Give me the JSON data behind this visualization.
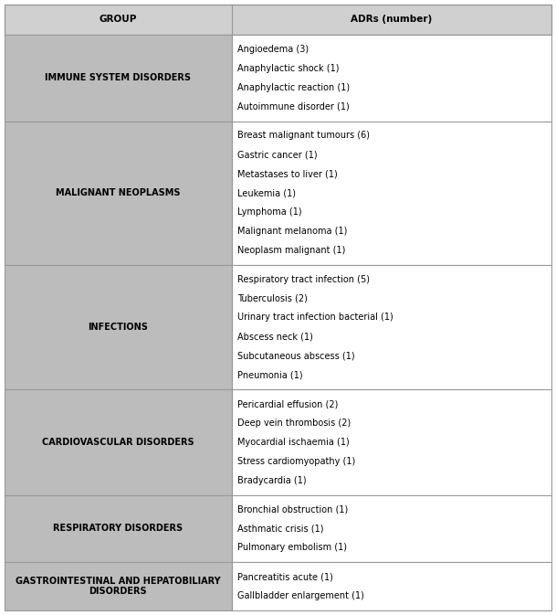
{
  "title_col1": "GROUP",
  "title_col2": "ADRs (number)",
  "header_bg": "#d0d0d0",
  "row_bg_left": "#bcbcbc",
  "row_bg_right": "#ffffff",
  "border_color": "#999999",
  "col_split": 0.415,
  "rows": [
    {
      "group": "IMMUNE SYSTEM DISORDERS",
      "adrs": [
        "Angioedema (3)",
        "Anaphylactic shock (1)",
        "Anaphylactic reaction (1)",
        "Autoimmune disorder (1)"
      ]
    },
    {
      "group": "MALIGNANT NEOPLASMS",
      "adrs": [
        "Breast malignant tumours (6)",
        "Gastric cancer (1)",
        "Metastases to liver (1)",
        "Leukemia (1)",
        "Lymphoma (1)",
        "Malignant melanoma (1)",
        "Neoplasm malignant (1)"
      ]
    },
    {
      "group": "INFECTIONS",
      "adrs": [
        "Respiratory tract infection (5)",
        "Tuberculosis (2)",
        "Urinary tract infection bacterial (1)",
        "Abscess neck (1)",
        "Subcutaneous abscess (1)",
        "Pneumonia (1)"
      ]
    },
    {
      "group": "CARDIOVASCULAR DISORDERS",
      "adrs": [
        "Pericardial effusion (2)",
        "Deep vein thrombosis (2)",
        "Myocardial ischaemia (1)",
        "Stress cardiomyopathy (1)",
        "Bradycardia (1)"
      ]
    },
    {
      "group": "RESPIRATORY DISORDERS",
      "adrs": [
        "Bronchial obstruction (1)",
        "Asthmatic crisis (1)",
        "Pulmonary embolism (1)"
      ]
    },
    {
      "group": "GASTROINTESTINAL AND HEPATOBILIARY\nDISORDERS",
      "adrs": [
        "Pancreatitis acute (1)",
        "Gallbladder enlargement (1)"
      ]
    }
  ],
  "group_font_size": 7.0,
  "adr_font_size": 7.0,
  "header_font_size": 7.5
}
